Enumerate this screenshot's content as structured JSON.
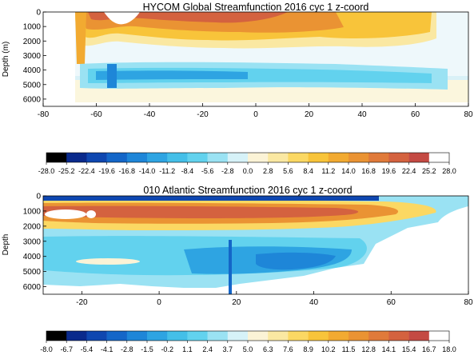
{
  "colors": {
    "global_cbar": [
      "#000000",
      "#0a2a8c",
      "#0f47b0",
      "#1466c8",
      "#1e86d8",
      "#2ea4e2",
      "#44bfe8",
      "#62d2ee",
      "#9ae2f3",
      "#d6f2f8",
      "#fbf3d6",
      "#fae8a2",
      "#fbd863",
      "#f8c43a",
      "#f2aa31",
      "#ea9333",
      "#e07a3a",
      "#d4623f",
      "#c44a43",
      "#ffffff"
    ],
    "atlantic_cbar": [
      "#000000",
      "#0a2a8c",
      "#0f47b0",
      "#1466c8",
      "#1e86d8",
      "#2ea4e2",
      "#44bfe8",
      "#62d2ee",
      "#9ae2f3",
      "#d6f2f8",
      "#fbf3d6",
      "#fae8a2",
      "#fbd863",
      "#f8c43a",
      "#f2aa31",
      "#ea9333",
      "#e07a3a",
      "#d4623f",
      "#c44a43",
      "#ffffff"
    ]
  },
  "chart_data": [
    {
      "type": "heatmap",
      "title": "HYCOM Global Streamfunction 2016 cyc 1 z-coord",
      "xlabel": "",
      "ylabel": "Depth (m)",
      "xlim": [
        -80,
        80
      ],
      "ylim": [
        6500,
        0
      ],
      "x_ticks": [
        "-80",
        "-60",
        "-40",
        "-20",
        "0",
        "20",
        "40",
        "60",
        "80"
      ],
      "x_tick_values": [
        -80,
        -60,
        -40,
        -20,
        0,
        20,
        40,
        60,
        80
      ],
      "y_ticks": [
        "0",
        "1000",
        "2000",
        "3000",
        "4000",
        "5000",
        "6000"
      ],
      "y_tick_values": [
        0,
        1000,
        2000,
        3000,
        4000,
        5000,
        6000
      ],
      "colorbar_levels": [
        "-28.0",
        "-25.2",
        "-22.4",
        "-19.6",
        "-16.8",
        "-14.0",
        "-11.2",
        "-8.4",
        "-5.6",
        "-2.8",
        "0.0",
        "2.8",
        "5.6",
        "8.4",
        "11.2",
        "14.0",
        "16.8",
        "19.6",
        "22.4",
        "25.2",
        "28.0"
      ],
      "colorbar_values": [
        -28.0,
        -25.2,
        -22.4,
        -19.6,
        -16.8,
        -14.0,
        -11.2,
        -8.4,
        -5.6,
        -2.8,
        0.0,
        2.8,
        5.6,
        8.4,
        11.2,
        14.0,
        16.8,
        19.6,
        22.4,
        25.2,
        28.0
      ],
      "features": [
        {
          "x": [
            -62,
            -20
          ],
          "y": [
            0,
            1500
          ],
          "value": 28.0
        },
        {
          "x": [
            -54,
            -46
          ],
          "y": [
            0,
            900
          ],
          "value": 25.2
        },
        {
          "x": [
            -66,
            -58
          ],
          "y": [
            800,
            2400
          ],
          "value": 16.8
        },
        {
          "x": [
            -20,
            35
          ],
          "y": [
            0,
            2000
          ],
          "value": 14.0
        },
        {
          "x": [
            -30,
            15
          ],
          "y": [
            300,
            1300
          ],
          "value": 19.6
        },
        {
          "x": [
            35,
            72
          ],
          "y": [
            0,
            2000
          ],
          "value": 8.4
        },
        {
          "x": [
            -58,
            62
          ],
          "y": [
            3400,
            4400
          ],
          "value": -11.2
        },
        {
          "x": [
            -50,
            -44
          ],
          "y": [
            2800,
            5000
          ],
          "value": -16.8
        },
        {
          "x": [
            -35,
            -5
          ],
          "y": [
            3500,
            4200
          ],
          "value": -14.0
        },
        {
          "x": [
            -58,
            70
          ],
          "y": [
            4800,
            5600
          ],
          "value": -5.6
        }
      ]
    },
    {
      "type": "heatmap",
      "title": "010 Atlantic Streamfunction 2016 cyc 1 z-coord",
      "xlabel": "",
      "ylabel": "Depth",
      "xlim": [
        -30,
        80
      ],
      "ylim": [
        6500,
        0
      ],
      "x_ticks": [
        "-20",
        "0",
        "20",
        "40",
        "60",
        "80"
      ],
      "x_tick_values": [
        -20,
        0,
        20,
        40,
        60,
        80
      ],
      "y_ticks": [
        "0",
        "1000",
        "2000",
        "3000",
        "4000",
        "5000",
        "6000"
      ],
      "y_tick_values": [
        0,
        1000,
        2000,
        3000,
        4000,
        5000,
        6000
      ],
      "colorbar_levels": [
        "-8.0",
        "-6.7",
        "-5.4",
        "-4.1",
        "-2.8",
        "-1.5",
        "-0.2",
        "1.1",
        "2.4",
        "3.7",
        "5.0",
        "6.3",
        "7.6",
        "8.9",
        "10.2",
        "11.5",
        "12.8",
        "14.1",
        "15.4",
        "16.7",
        "18.0"
      ],
      "colorbar_values": [
        -8.0,
        -6.7,
        -5.4,
        -4.1,
        -2.8,
        -1.5,
        -0.2,
        1.1,
        2.4,
        3.7,
        5.0,
        6.3,
        7.6,
        8.9,
        10.2,
        11.5,
        12.8,
        14.1,
        15.4,
        16.7,
        18.0
      ],
      "features": [
        {
          "x": [
            -28,
            62
          ],
          "y": [
            400,
            1900
          ],
          "value": 12.8
        },
        {
          "x": [
            0,
            45
          ],
          "y": [
            600,
            1400
          ],
          "value": 15.4
        },
        {
          "x": [
            -28,
            -14
          ],
          "y": [
            900,
            1400
          ],
          "value": 18.0
        },
        {
          "x": [
            -20,
            5
          ],
          "y": [
            4300,
            4900
          ],
          "value": 5.0
        },
        {
          "x": [
            18,
            50
          ],
          "y": [
            3500,
            5200
          ],
          "value": -2.8
        },
        {
          "x": [
            -28,
            60
          ],
          "y": [
            2800,
            4000
          ],
          "value": -0.2
        },
        {
          "x": [
            20,
            22
          ],
          "y": [
            2500,
            6500
          ],
          "value": -4.1
        }
      ]
    }
  ]
}
